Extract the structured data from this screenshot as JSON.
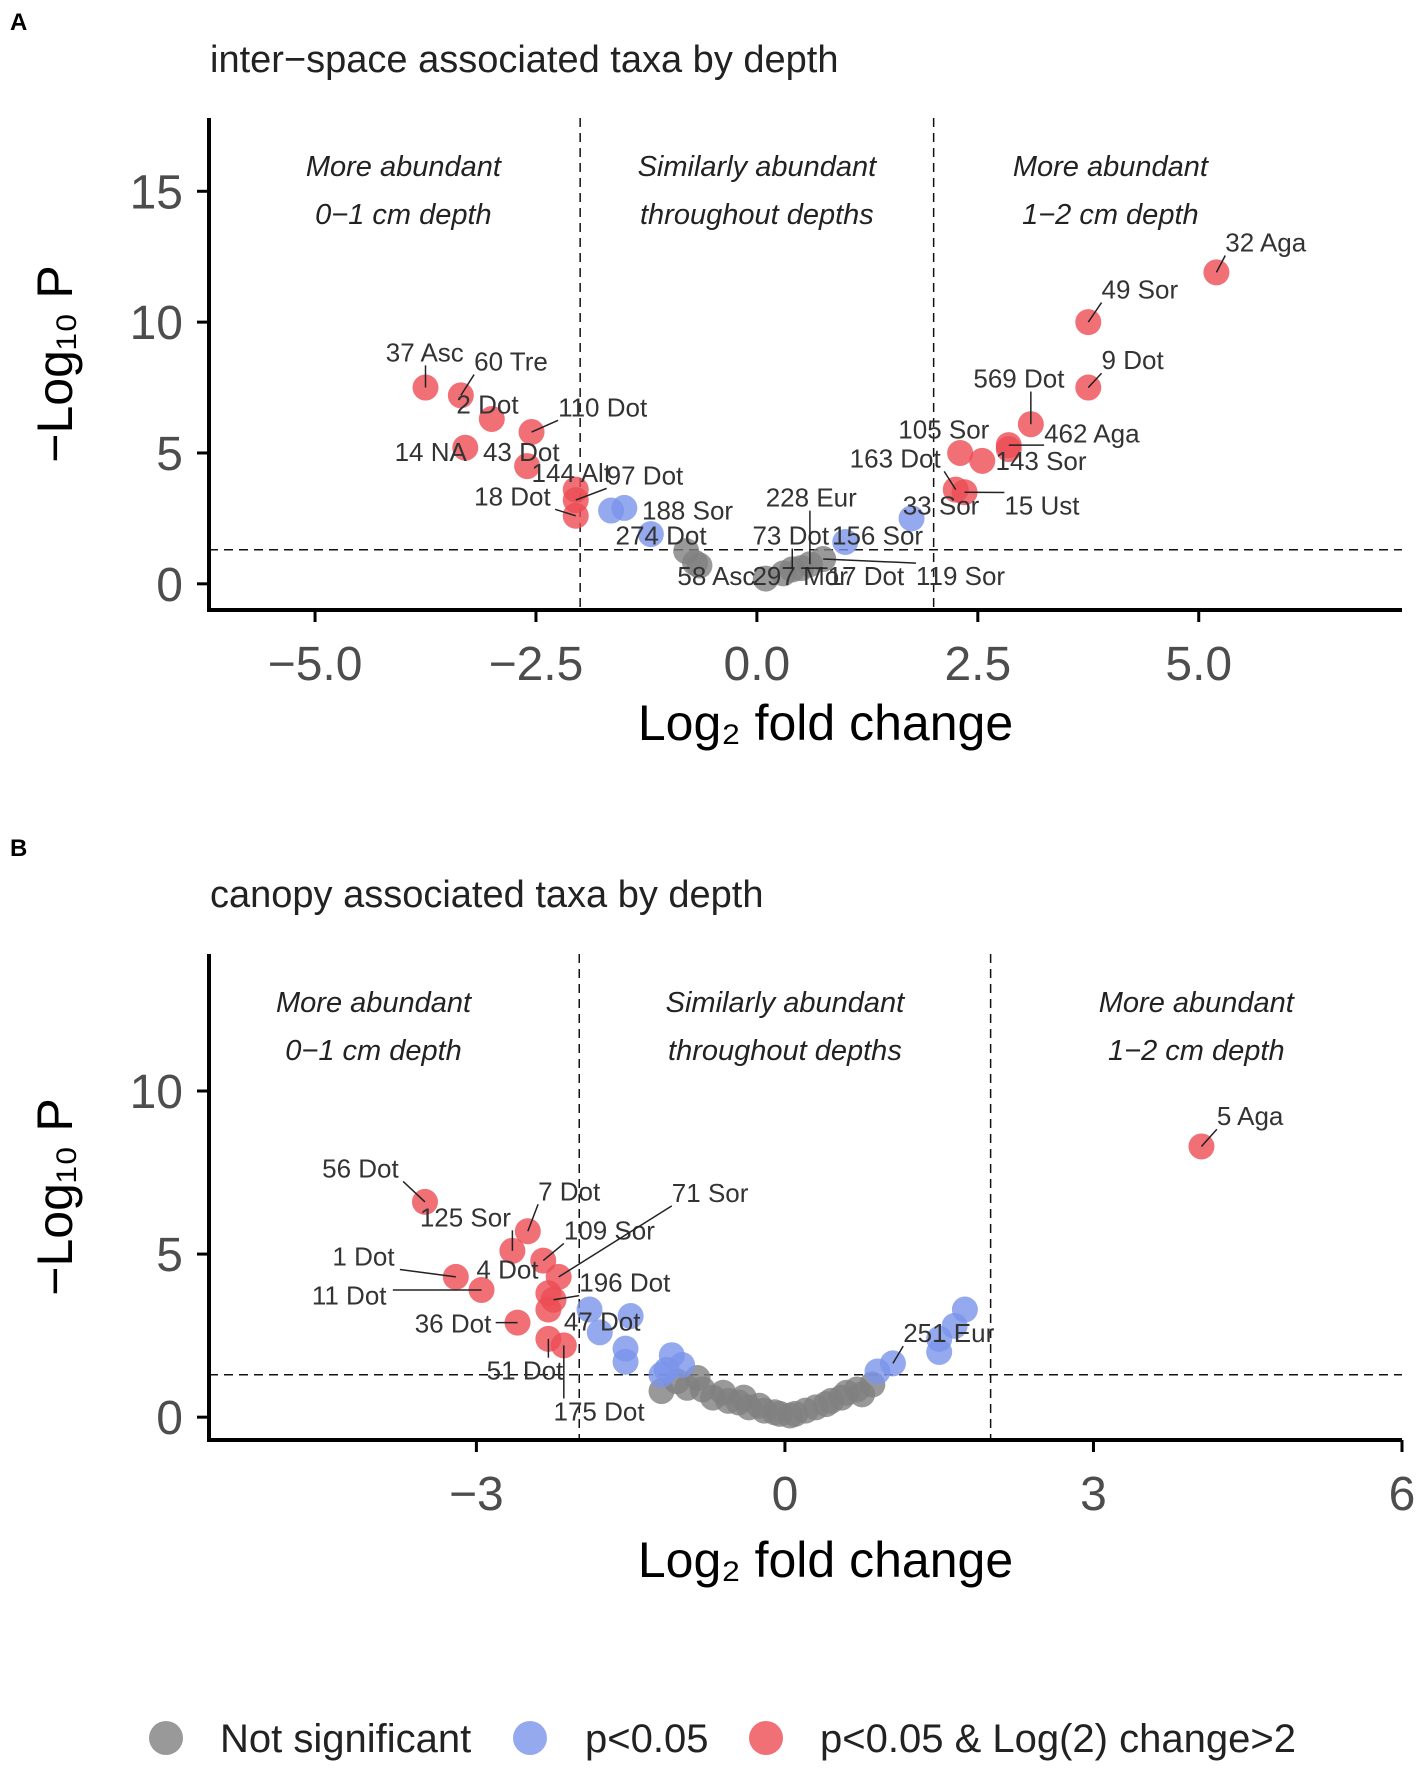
{
  "legend": {
    "items": [
      {
        "label": "Not significant",
        "color": "#7f7f7f"
      },
      {
        "label": "p<0.05",
        "color": "#7b93ea"
      },
      {
        "label": "p<0.05 & Log(2) change>2",
        "color": "#ec4c54"
      }
    ]
  },
  "chart_data": [
    {
      "panel": "A",
      "type": "scatter",
      "title": "inter−space associated taxa by depth",
      "xlabel": "Log₂ fold change",
      "ylabel": "−Log₁₀ P",
      "xlim": [
        -6.2,
        7.3
      ],
      "ylim": [
        -1.0,
        17.8
      ],
      "xticks": [
        -5.0,
        -2.5,
        0.0,
        2.5,
        5.0
      ],
      "xtick_labels": [
        "−5.0",
        "−2.5",
        "0.0",
        "2.5",
        "5.0"
      ],
      "yticks": [
        0,
        5,
        10,
        15
      ],
      "ytick_labels": [
        "0",
        "5",
        "10",
        "15"
      ],
      "vlines": [
        -2,
        2
      ],
      "hline": 1.3,
      "regions": [
        {
          "x": -4.0,
          "lines": [
            "More abundant",
            "0−1 cm depth"
          ]
        },
        {
          "x": 0.0,
          "lines": [
            "Similarly abundant",
            "throughout depths"
          ]
        },
        {
          "x": 4.0,
          "lines": [
            "More abundant",
            "1−2 cm depth"
          ]
        }
      ],
      "points": [
        {
          "x": 5.2,
          "y": 11.9,
          "g": "red",
          "label": "32 Aga",
          "lx": 5.3,
          "ly": 12.7
        },
        {
          "x": 3.75,
          "y": 10.0,
          "g": "red",
          "label": "49 Sor",
          "lx": 3.9,
          "ly": 10.9
        },
        {
          "x": 3.75,
          "y": 7.5,
          "g": "red",
          "label": "9 Dot",
          "lx": 3.9,
          "ly": 8.2
        },
        {
          "x": 3.1,
          "y": 6.1,
          "g": "red",
          "label": "569 Dot",
          "lx": 2.45,
          "ly": 7.5
        },
        {
          "x": 2.85,
          "y": 5.3,
          "g": "red",
          "label": "462 Aga",
          "lx": 3.25,
          "ly": 5.4
        },
        {
          "x": 2.3,
          "y": 5.0,
          "g": "red",
          "label": "105 Sor",
          "lx": 1.6,
          "ly": 5.55
        },
        {
          "x": 2.55,
          "y": 4.7,
          "g": "red",
          "label": "143 Sor",
          "lx": 2.7,
          "ly": 4.35
        },
        {
          "x": 2.85,
          "y": 5.15,
          "g": "red"
        },
        {
          "x": 2.25,
          "y": 3.6,
          "g": "red",
          "label": "163 Dot",
          "lx": 1.05,
          "ly": 4.45
        },
        {
          "x": 2.35,
          "y": 3.5,
          "g": "red",
          "label": "15 Ust",
          "lx": 2.8,
          "ly": 2.65
        },
        {
          "x": 1.75,
          "y": 2.5,
          "g": "blue",
          "label": "33 Sor",
          "lx": 1.65,
          "ly": 2.65
        },
        {
          "x": 1.0,
          "y": 1.6,
          "g": "blue",
          "label": "156 Sor",
          "lx": 0.85,
          "ly": 1.5
        },
        {
          "x": -3.75,
          "y": 7.5,
          "g": "red",
          "label": "37 Asc",
          "lx": -4.2,
          "ly": 8.5
        },
        {
          "x": -3.35,
          "y": 7.2,
          "g": "red",
          "label": "60 Tre",
          "lx": -3.2,
          "ly": 8.15
        },
        {
          "x": -3.0,
          "y": 6.3,
          "g": "red",
          "label": "2 Dot",
          "lx": -3.4,
          "ly": 6.5
        },
        {
          "x": -2.55,
          "y": 5.8,
          "g": "red",
          "label": "110 Dot",
          "lx": -2.25,
          "ly": 6.4
        },
        {
          "x": -3.3,
          "y": 5.2,
          "g": "red",
          "label": "14 NA",
          "lx": -4.1,
          "ly": 4.7
        },
        {
          "x": -2.6,
          "y": 4.5,
          "g": "red",
          "label": "43 Dot",
          "lx": -3.1,
          "ly": 4.7
        },
        {
          "x": -2.05,
          "y": 3.6,
          "g": "red",
          "label": "144 Alt",
          "lx": -2.55,
          "ly": 3.9
        },
        {
          "x": -2.05,
          "y": 3.2,
          "g": "red",
          "label": "97 Dot",
          "lx": -1.7,
          "ly": 3.8
        },
        {
          "x": -2.05,
          "y": 2.6,
          "g": "red",
          "label": "18 Dot",
          "lx": -3.2,
          "ly": 3.0
        },
        {
          "x": -1.5,
          "y": 2.9,
          "g": "blue"
        },
        {
          "x": -1.65,
          "y": 2.8,
          "g": "blue"
        },
        {
          "x": -1.2,
          "y": 1.9,
          "g": "blue",
          "label": "188 Sor",
          "lx": -1.3,
          "ly": 2.45
        },
        {
          "x": -0.8,
          "y": 1.25,
          "g": "grey"
        },
        {
          "x": -0.7,
          "y": 0.8,
          "g": "grey",
          "label": "274 Dot",
          "lx": -1.6,
          "ly": 1.5
        },
        {
          "x": -0.65,
          "y": 0.7,
          "g": "grey",
          "label": "58 Asc",
          "lx": -0.9,
          "ly": -0.05
        },
        {
          "x": 0.1,
          "y": 0.2,
          "g": "grey"
        },
        {
          "x": 0.3,
          "y": 0.4,
          "g": "grey",
          "label": "297 Mor",
          "lx": -0.05,
          "ly": -0.05
        },
        {
          "x": 0.4,
          "y": 0.55,
          "g": "grey",
          "label": "73 Dot",
          "lx": -0.05,
          "ly": 1.5
        },
        {
          "x": 0.5,
          "y": 0.6,
          "g": "grey",
          "label": "17 Dot",
          "lx": 0.8,
          "ly": -0.05
        },
        {
          "x": 0.6,
          "y": 0.75,
          "g": "grey",
          "label": "228 Eur",
          "lx": 0.1,
          "ly": 2.95
        },
        {
          "x": 0.75,
          "y": 0.95,
          "g": "grey",
          "label": "119 Sor",
          "lx": 1.8,
          "ly": -0.05
        }
      ]
    },
    {
      "panel": "B",
      "type": "scatter",
      "title": "canopy associated taxa by depth",
      "xlabel": "Log₂ fold change",
      "ylabel": "−Log₁₀ P",
      "xlim": [
        -5.6,
        6.0
      ],
      "ylim": [
        -0.7,
        14.2
      ],
      "xticks": [
        -3,
        0,
        3,
        6
      ],
      "xtick_labels": [
        "−3",
        "0",
        "3",
        "6"
      ],
      "yticks": [
        0,
        5,
        10
      ],
      "ytick_labels": [
        "0",
        "5",
        "10"
      ],
      "vlines": [
        -2,
        2
      ],
      "hline": 1.3,
      "regions": [
        {
          "x": -4.0,
          "lines": [
            "More abundant",
            "0−1 cm depth"
          ]
        },
        {
          "x": 0.0,
          "lines": [
            "Similarly abundant",
            "throughout depths"
          ]
        },
        {
          "x": 4.0,
          "lines": [
            "More abundant",
            "1−2 cm depth"
          ]
        }
      ],
      "points": [
        {
          "x": 4.05,
          "y": 8.3,
          "g": "red",
          "label": "5 Aga",
          "lx": 4.2,
          "ly": 8.95
        },
        {
          "x": -3.5,
          "y": 6.6,
          "g": "red",
          "label": "56 Dot",
          "lx": -4.5,
          "ly": 7.35
        },
        {
          "x": -2.5,
          "y": 5.7,
          "g": "red",
          "label": "7 Dot",
          "lx": -2.4,
          "ly": 6.65
        },
        {
          "x": -2.65,
          "y": 5.1,
          "g": "red",
          "label": "125 Sor",
          "lx": -3.55,
          "ly": 5.85
        },
        {
          "x": -2.35,
          "y": 4.8,
          "g": "red",
          "label": "109 Sor",
          "lx": -2.15,
          "ly": 5.45
        },
        {
          "x": -2.2,
          "y": 4.3,
          "g": "red",
          "label": "71 Sor",
          "lx": -1.1,
          "ly": 6.6
        },
        {
          "x": -3.2,
          "y": 4.3,
          "g": "red",
          "label": "1 Dot",
          "lx": -4.4,
          "ly": 4.65
        },
        {
          "x": -2.95,
          "y": 3.9,
          "g": "red",
          "label": "11 Dot",
          "lx": -4.6,
          "ly": 3.45
        },
        {
          "x": -2.3,
          "y": 3.8,
          "g": "red",
          "label": "4 Dot",
          "lx": -3.0,
          "ly": 4.25
        },
        {
          "x": -2.25,
          "y": 3.6,
          "g": "red",
          "label": "196 Dot",
          "lx": -2.0,
          "ly": 3.85
        },
        {
          "x": -2.3,
          "y": 3.3,
          "g": "red",
          "label": "47 Dot",
          "lx": -2.15,
          "ly": 2.65
        },
        {
          "x": -2.6,
          "y": 2.9,
          "g": "red",
          "label": "36 Dot",
          "lx": -3.6,
          "ly": 2.6
        },
        {
          "x": -2.3,
          "y": 2.4,
          "g": "red",
          "label": "51 Dot",
          "lx": -2.9,
          "ly": 1.15
        },
        {
          "x": -2.15,
          "y": 2.2,
          "g": "red",
          "label": "175 Dot",
          "lx": -2.25,
          "ly": -0.1
        },
        {
          "x": -1.9,
          "y": 3.3,
          "g": "blue"
        },
        {
          "x": -1.5,
          "y": 3.1,
          "g": "blue"
        },
        {
          "x": -1.8,
          "y": 2.6,
          "g": "blue"
        },
        {
          "x": -1.55,
          "y": 2.1,
          "g": "blue"
        },
        {
          "x": -1.55,
          "y": 1.7,
          "g": "blue"
        },
        {
          "x": -1.1,
          "y": 1.9,
          "g": "blue"
        },
        {
          "x": -1.15,
          "y": 1.45,
          "g": "blue"
        },
        {
          "x": -1.0,
          "y": 1.6,
          "g": "blue"
        },
        {
          "x": -1.2,
          "y": 1.3,
          "g": "blue"
        },
        {
          "x": 1.75,
          "y": 3.3,
          "g": "blue"
        },
        {
          "x": 1.65,
          "y": 2.8,
          "g": "blue"
        },
        {
          "x": 1.5,
          "y": 2.4,
          "g": "blue"
        },
        {
          "x": 1.5,
          "y": 2.0,
          "g": "blue"
        },
        {
          "x": 1.05,
          "y": 1.65,
          "g": "blue",
          "label": "251 Eur",
          "lx": 1.15,
          "ly": 2.3
        },
        {
          "x": 0.9,
          "y": 1.4,
          "g": "blue"
        },
        {
          "x": -1.2,
          "y": 0.8,
          "g": "grey"
        },
        {
          "x": -1.05,
          "y": 1.1,
          "g": "grey"
        },
        {
          "x": -0.95,
          "y": 0.9,
          "g": "grey"
        },
        {
          "x": -0.85,
          "y": 1.2,
          "g": "grey"
        },
        {
          "x": -0.8,
          "y": 0.85,
          "g": "grey"
        },
        {
          "x": -0.7,
          "y": 0.6,
          "g": "grey"
        },
        {
          "x": -0.6,
          "y": 0.75,
          "g": "grey"
        },
        {
          "x": -0.55,
          "y": 0.5,
          "g": "grey"
        },
        {
          "x": -0.45,
          "y": 0.45,
          "g": "grey"
        },
        {
          "x": -0.4,
          "y": 0.6,
          "g": "grey"
        },
        {
          "x": -0.35,
          "y": 0.3,
          "g": "grey"
        },
        {
          "x": -0.25,
          "y": 0.35,
          "g": "grey"
        },
        {
          "x": -0.2,
          "y": 0.2,
          "g": "grey"
        },
        {
          "x": -0.1,
          "y": 0.15,
          "g": "grey"
        },
        {
          "x": -0.05,
          "y": 0.1,
          "g": "grey"
        },
        {
          "x": 0.05,
          "y": 0.05,
          "g": "grey"
        },
        {
          "x": 0.1,
          "y": 0.1,
          "g": "grey"
        },
        {
          "x": 0.2,
          "y": 0.2,
          "g": "grey"
        },
        {
          "x": 0.3,
          "y": 0.3,
          "g": "grey"
        },
        {
          "x": 0.4,
          "y": 0.4,
          "g": "grey"
        },
        {
          "x": 0.45,
          "y": 0.5,
          "g": "grey"
        },
        {
          "x": 0.55,
          "y": 0.6,
          "g": "grey"
        },
        {
          "x": 0.6,
          "y": 0.75,
          "g": "grey"
        },
        {
          "x": 0.7,
          "y": 0.85,
          "g": "grey"
        },
        {
          "x": 0.75,
          "y": 0.7,
          "g": "grey"
        },
        {
          "x": 0.85,
          "y": 1.0,
          "g": "grey"
        }
      ]
    }
  ]
}
